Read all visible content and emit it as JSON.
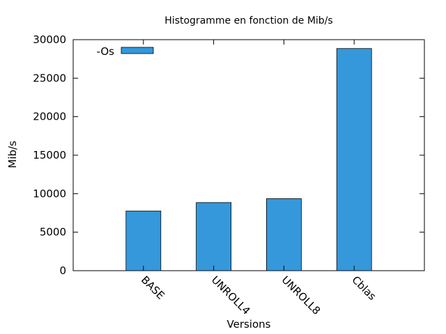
{
  "chart_data": {
    "type": "bar",
    "title": "Histogramme en fonction de Mib/s",
    "xlabel": "Versions",
    "ylabel": "Mib/s",
    "categories": [
      "BASE",
      "UNROLL4",
      "UNROLL8",
      "Cblas"
    ],
    "series": [
      {
        "name": "-Os",
        "values": [
          7750,
          8850,
          9350,
          28850
        ],
        "color": "#3498db"
      }
    ],
    "ylim": [
      0,
      30000
    ],
    "yticks": [
      0,
      5000,
      10000,
      15000,
      20000,
      25000,
      30000
    ],
    "grid": false,
    "legend_position": "top-left"
  }
}
